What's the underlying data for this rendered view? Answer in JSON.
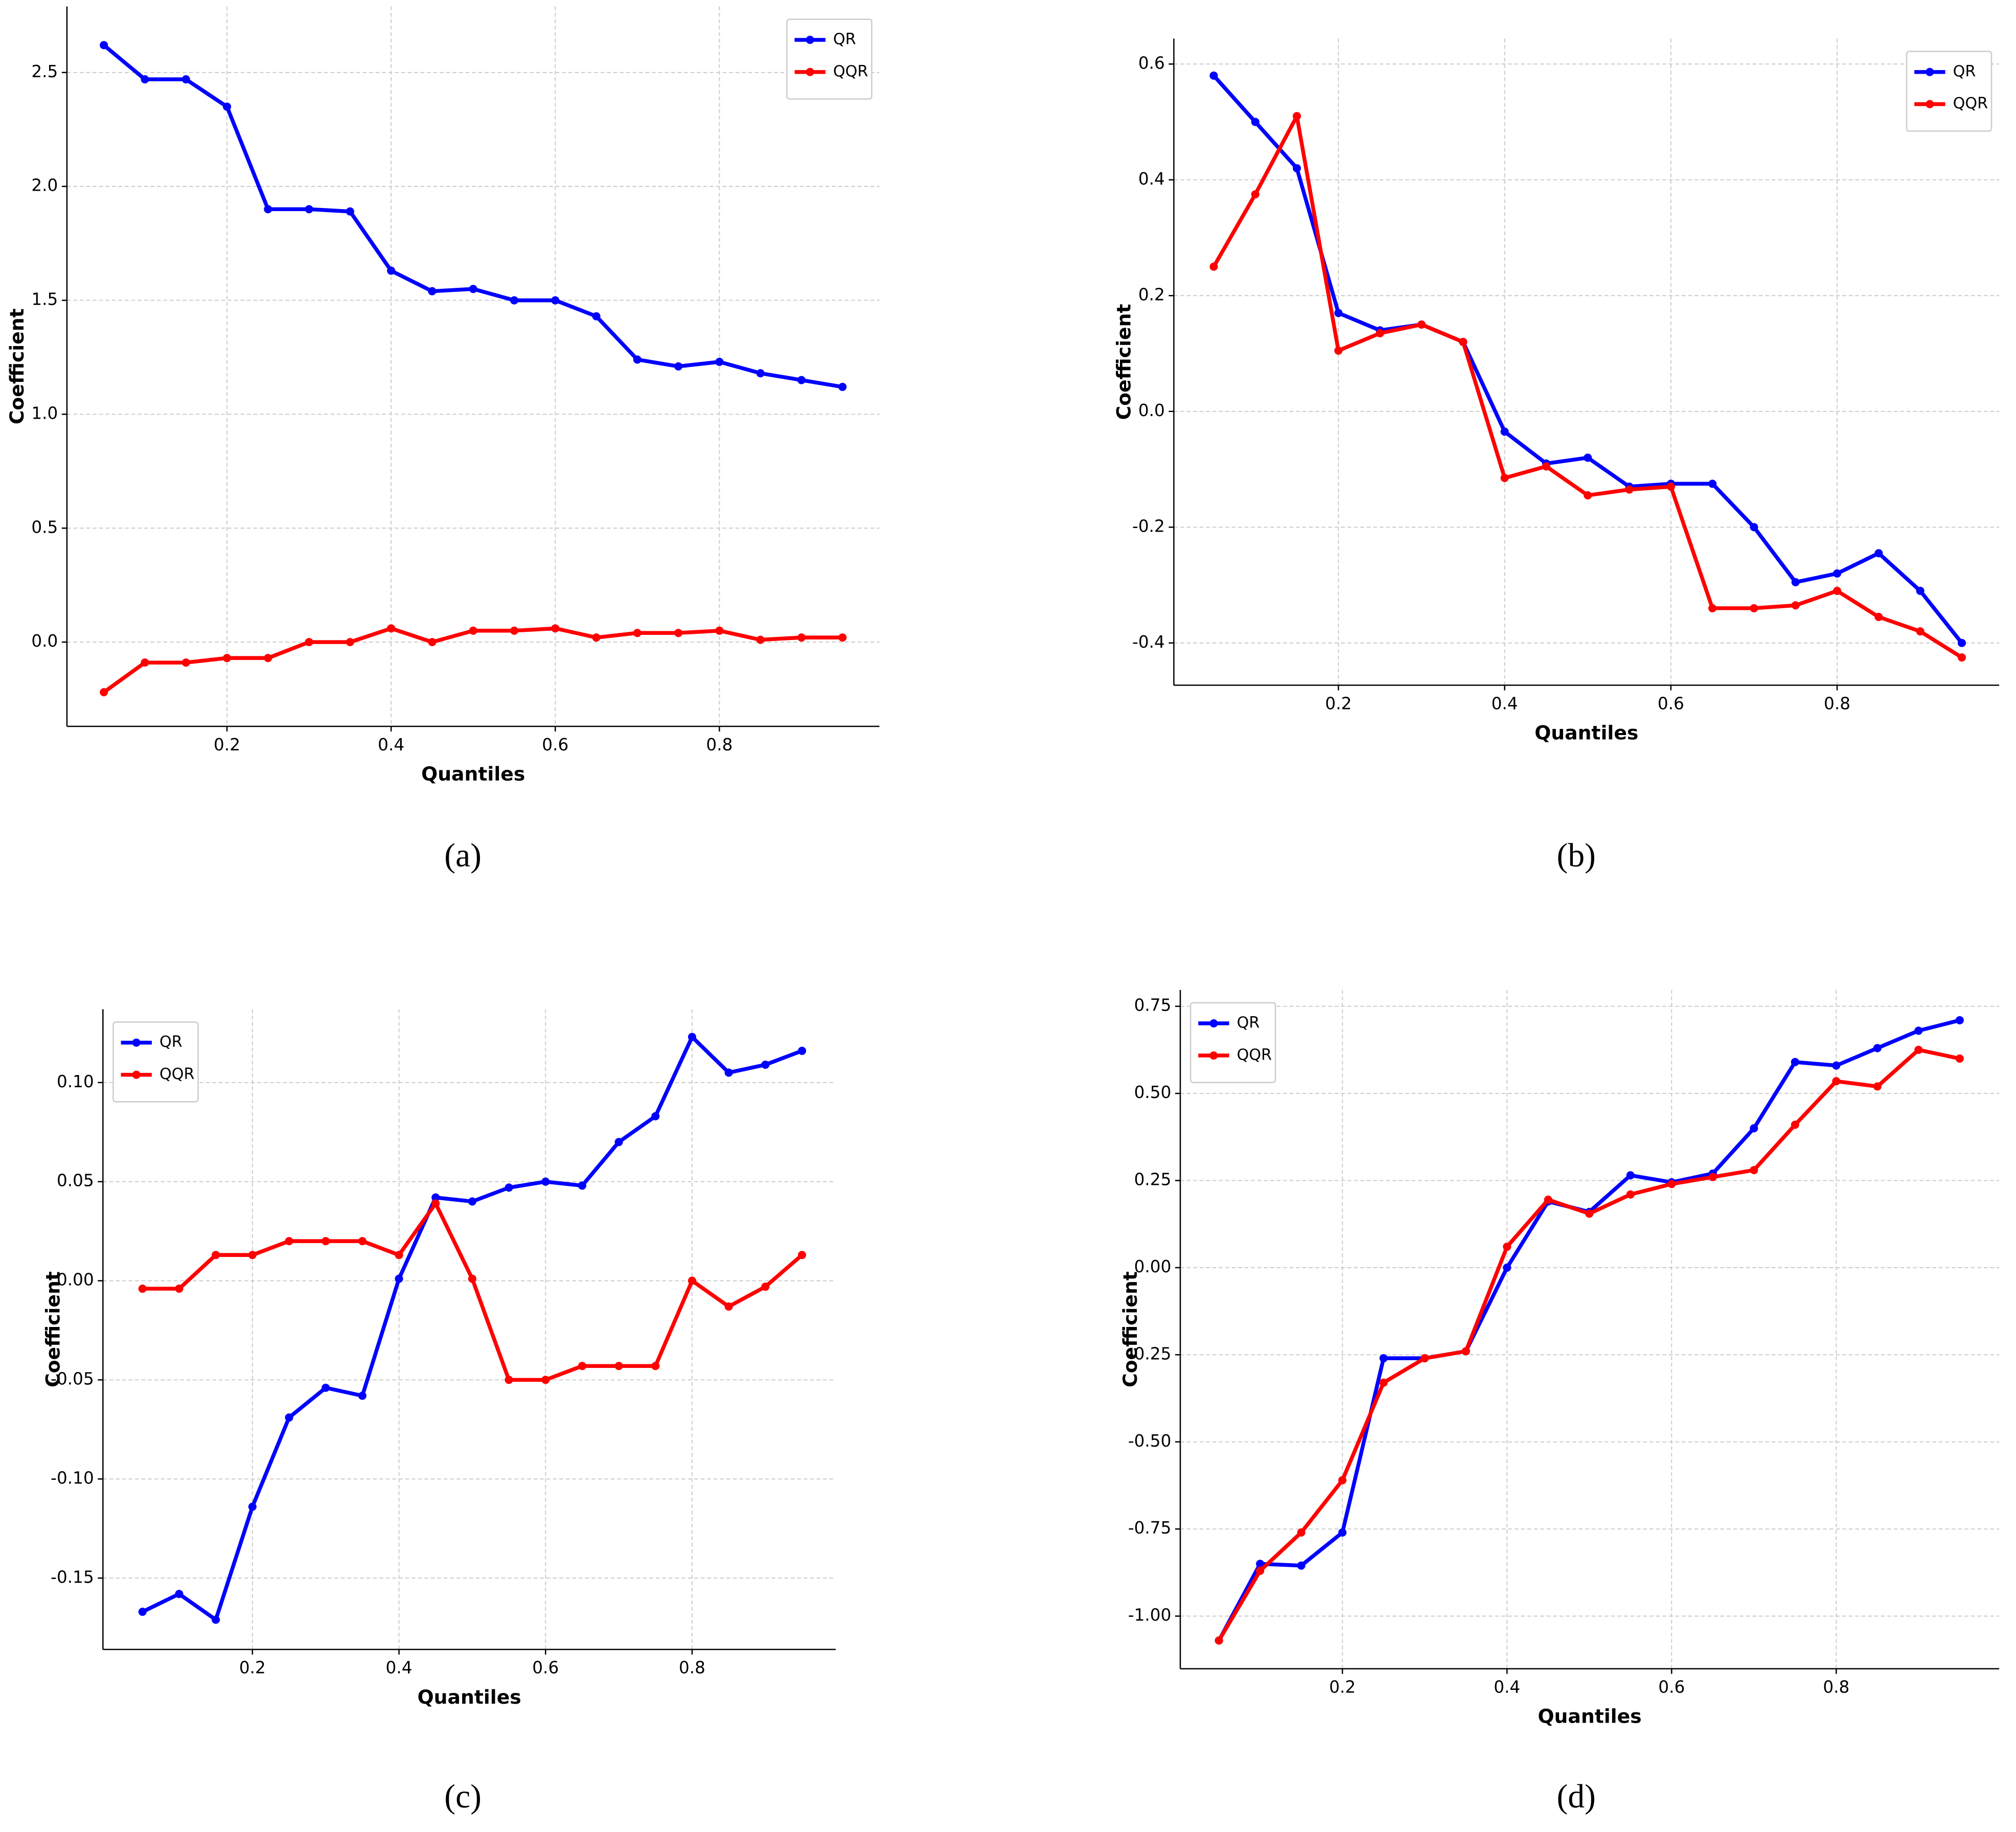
{
  "chart_data": [
    {
      "type": "line",
      "caption": "(a)",
      "x_label": "Quantiles",
      "y_label": "Coefficient",
      "x": [
        0.05,
        0.1,
        0.15,
        0.2,
        0.25,
        0.3,
        0.35,
        0.4,
        0.45,
        0.5,
        0.55,
        0.6,
        0.65,
        0.7,
        0.75,
        0.8,
        0.85,
        0.9,
        0.95
      ],
      "series": [
        {
          "name": "QR",
          "color": "#0000ff",
          "values": [
            2.62,
            2.47,
            2.47,
            2.35,
            1.9,
            1.9,
            1.89,
            1.63,
            1.54,
            1.55,
            1.5,
            1.5,
            1.43,
            1.24,
            1.21,
            1.23,
            1.18,
            1.15,
            1.12
          ]
        },
        {
          "name": "QQR",
          "color": "#ff0000",
          "values": [
            -0.22,
            -0.09,
            -0.09,
            -0.07,
            -0.07,
            0.0,
            0.0,
            0.06,
            0.0,
            0.05,
            0.05,
            0.06,
            0.02,
            0.04,
            0.04,
            0.05,
            0.01,
            0.02,
            0.02
          ]
        }
      ],
      "xlim": [
        0.005,
        0.995
      ],
      "ylim": [
        -0.37,
        2.79
      ],
      "xticks": [
        0.2,
        0.4,
        0.6,
        0.8
      ],
      "yticks": [
        {
          "value": 0,
          "label": "0.0"
        },
        0.5,
        {
          "value": 1,
          "label": "1.0"
        },
        1.5,
        {
          "value": 2,
          "label": "2.0"
        },
        2.5
      ],
      "grid": true,
      "legend": "upper-right"
    },
    {
      "type": "line",
      "caption": "(b)",
      "x_label": "Quantiles",
      "y_label": "Coefficient",
      "x": [
        0.05,
        0.1,
        0.15,
        0.2,
        0.25,
        0.3,
        0.35,
        0.4,
        0.45,
        0.5,
        0.55,
        0.6,
        0.65,
        0.7,
        0.75,
        0.8,
        0.85,
        0.9,
        0.95
      ],
      "series": [
        {
          "name": "QR",
          "color": "#0000ff",
          "values": [
            0.58,
            0.5,
            0.42,
            0.17,
            0.14,
            0.15,
            0.12,
            -0.035,
            -0.09,
            -0.08,
            -0.13,
            -0.125,
            -0.125,
            -0.2,
            -0.295,
            -0.28,
            -0.245,
            -0.31,
            -0.4
          ]
        },
        {
          "name": "QQR",
          "color": "#ff0000",
          "values": [
            0.25,
            0.375,
            0.51,
            0.105,
            0.135,
            0.15,
            0.12,
            -0.115,
            -0.095,
            -0.145,
            -0.135,
            -0.13,
            -0.34,
            -0.34,
            -0.335,
            -0.31,
            -0.355,
            -0.38,
            -0.425
          ]
        }
      ],
      "xlim": [
        0.002,
        0.995
      ],
      "ylim": [
        -0.473,
        0.644
      ],
      "xticks": [
        0.2,
        0.4,
        0.6,
        0.8
      ],
      "yticks": [
        -0.4,
        -0.2,
        {
          "value": 0,
          "label": "0.0"
        },
        0.2,
        0.4,
        0.6
      ],
      "grid": true,
      "legend": "upper-right"
    },
    {
      "type": "line",
      "caption": "(c)",
      "x_label": "Quantiles",
      "y_label": "Coefficient",
      "x": [
        0.05,
        0.1,
        0.15,
        0.2,
        0.25,
        0.3,
        0.35,
        0.4,
        0.45,
        0.5,
        0.55,
        0.6,
        0.65,
        0.7,
        0.75,
        0.8,
        0.85,
        0.9,
        0.95
      ],
      "series": [
        {
          "name": "QR",
          "color": "#0000ff",
          "values": [
            -0.167,
            -0.158,
            -0.171,
            -0.114,
            -0.069,
            -0.054,
            -0.058,
            0.001,
            0.042,
            0.04,
            0.047,
            0.05,
            0.048,
            0.07,
            0.083,
            0.123,
            0.105,
            0.109,
            0.116
          ]
        },
        {
          "name": "QQR",
          "color": "#ff0000",
          "values": [
            -0.004,
            -0.004,
            0.013,
            0.013,
            0.02,
            0.02,
            0.02,
            0.013,
            0.039,
            0.001,
            -0.05,
            -0.05,
            -0.043,
            -0.043,
            -0.043,
            0.0,
            -0.013,
            -0.003,
            0.013
          ]
        }
      ],
      "xlim": [
        -0.004,
        0.996
      ],
      "ylim": [
        -0.186,
        0.137
      ],
      "xticks": [
        0.2,
        0.4,
        0.6,
        0.8
      ],
      "yticks": [
        -0.15,
        {
          "value": -0.1,
          "label": "-0.10"
        },
        -0.05,
        {
          "value": 0,
          "label": "0.00"
        },
        0.05,
        {
          "value": 0.1,
          "label": "0.10"
        }
      ],
      "grid": true,
      "legend": "upper-left"
    },
    {
      "type": "line",
      "caption": "(d)",
      "x_label": "Quantiles",
      "y_label": "Coefficient",
      "x": [
        0.05,
        0.1,
        0.15,
        0.2,
        0.25,
        0.3,
        0.35,
        0.4,
        0.45,
        0.5,
        0.55,
        0.6,
        0.65,
        0.7,
        0.75,
        0.8,
        0.85,
        0.9,
        0.95
      ],
      "series": [
        {
          "name": "QR",
          "color": "#0000ff",
          "values": [
            -1.07,
            -0.85,
            -0.855,
            -0.76,
            -0.26,
            -0.26,
            -0.24,
            0.0,
            0.19,
            0.16,
            0.265,
            0.245,
            0.27,
            0.4,
            0.59,
            0.58,
            0.63,
            0.68,
            0.71
          ]
        },
        {
          "name": "QQR",
          "color": "#ff0000",
          "values": [
            -1.07,
            -0.87,
            -0.76,
            -0.61,
            -0.33,
            -0.26,
            -0.24,
            0.06,
            0.195,
            0.155,
            0.21,
            0.24,
            0.26,
            0.28,
            0.41,
            0.535,
            0.52,
            0.625,
            0.6
          ]
        }
      ],
      "xlim": [
        0.003,
        0.998
      ],
      "ylim": [
        -1.151,
        0.797
      ],
      "xticks": [
        0.2,
        0.4,
        0.6,
        0.8
      ],
      "yticks": [
        {
          "value": -1,
          "label": "-1.00"
        },
        -0.75,
        {
          "value": -0.5,
          "label": "-0.50"
        },
        -0.25,
        {
          "value": 0,
          "label": "0.00"
        },
        0.25,
        {
          "value": 0.5,
          "label": "0.50"
        },
        0.75
      ],
      "grid": true,
      "legend": "upper-left"
    }
  ]
}
